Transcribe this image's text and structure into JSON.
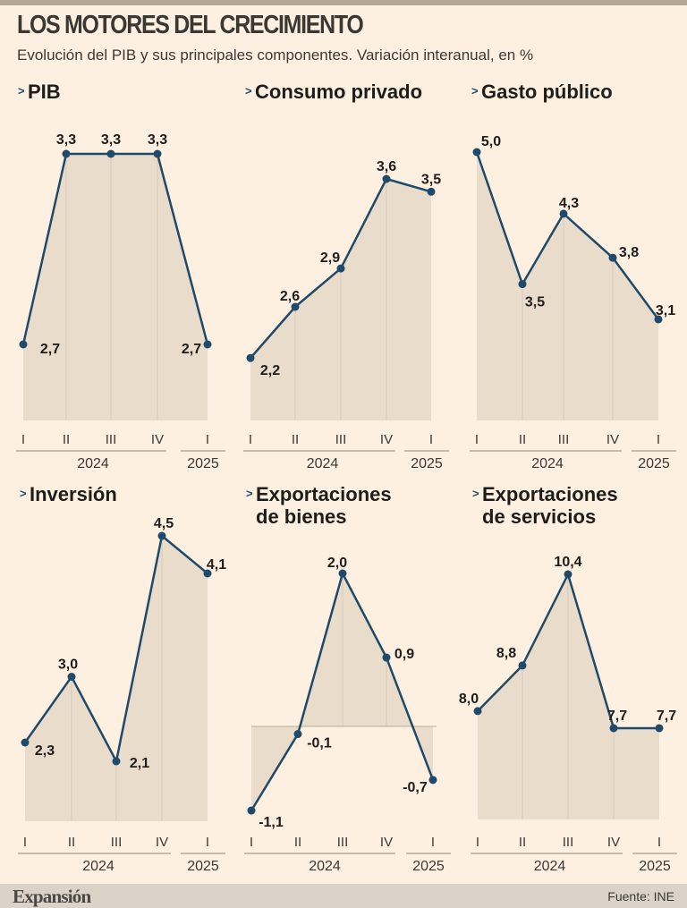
{
  "header": {
    "title": "LOS MOTORES DEL CRECIMIENTO",
    "subtitle": "Evolución del PIB y sus principales componentes. Variación interanual, en %"
  },
  "footer": {
    "logo": "Expansión",
    "source": "Fuente: INE"
  },
  "colors": {
    "background": "#fdf0e0",
    "fill": "#e9dccb",
    "line": "#1f4a6a",
    "gridline": "#d8cab7"
  },
  "chart_data": [
    {
      "type": "area",
      "title": [
        "PIB"
      ],
      "categories": [
        "I",
        "II",
        "III",
        "IV",
        "I"
      ],
      "years": [
        "2024",
        "2025"
      ],
      "values": [
        2.7,
        3.3,
        3.3,
        3.3,
        2.7
      ],
      "labels": [
        "2,7",
        "3,3",
        "3,3",
        "3,3",
        "2,7"
      ]
    },
    {
      "type": "area",
      "title": [
        "Consumo privado"
      ],
      "categories": [
        "I",
        "II",
        "III",
        "IV",
        "I"
      ],
      "years": [
        "2024",
        "2025"
      ],
      "values": [
        2.2,
        2.6,
        2.9,
        3.6,
        3.5
      ],
      "labels": [
        "2,2",
        "2,6",
        "2,9",
        "3,6",
        "3,5"
      ]
    },
    {
      "type": "area",
      "title": [
        "Gasto público"
      ],
      "categories": [
        "I",
        "II",
        "III",
        "IV",
        "I"
      ],
      "years": [
        "2024",
        "2025"
      ],
      "values": [
        5.0,
        3.5,
        4.3,
        3.8,
        3.1
      ],
      "labels": [
        "5,0",
        "3,5",
        "4,3",
        "3,8",
        "3,1"
      ]
    },
    {
      "type": "area",
      "title": [
        "Inversión"
      ],
      "categories": [
        "I",
        "II",
        "III",
        "IV",
        "I"
      ],
      "years": [
        "2024",
        "2025"
      ],
      "values": [
        2.3,
        3.0,
        2.1,
        4.5,
        4.1
      ],
      "labels": [
        "2,3",
        "3,0",
        "2,1",
        "4,5",
        "4,1"
      ]
    },
    {
      "type": "area",
      "title": [
        "Exportaciones",
        "de bienes"
      ],
      "categories": [
        "I",
        "II",
        "III",
        "IV",
        "I"
      ],
      "years": [
        "2024",
        "2025"
      ],
      "values": [
        -1.1,
        -0.1,
        2.0,
        0.9,
        -0.7
      ],
      "labels": [
        "-1,1",
        "-0,1",
        "2,0",
        "0,9",
        "-0,7"
      ]
    },
    {
      "type": "area",
      "title": [
        "Exportaciones",
        "de servicios"
      ],
      "categories": [
        "I",
        "II",
        "III",
        "IV",
        "I"
      ],
      "years": [
        "2024",
        "2025"
      ],
      "values": [
        8.0,
        8.8,
        10.4,
        7.7,
        7.7
      ],
      "labels": [
        "8,0",
        "8,8",
        "10,4",
        "7,7",
        "7,7"
      ]
    }
  ]
}
